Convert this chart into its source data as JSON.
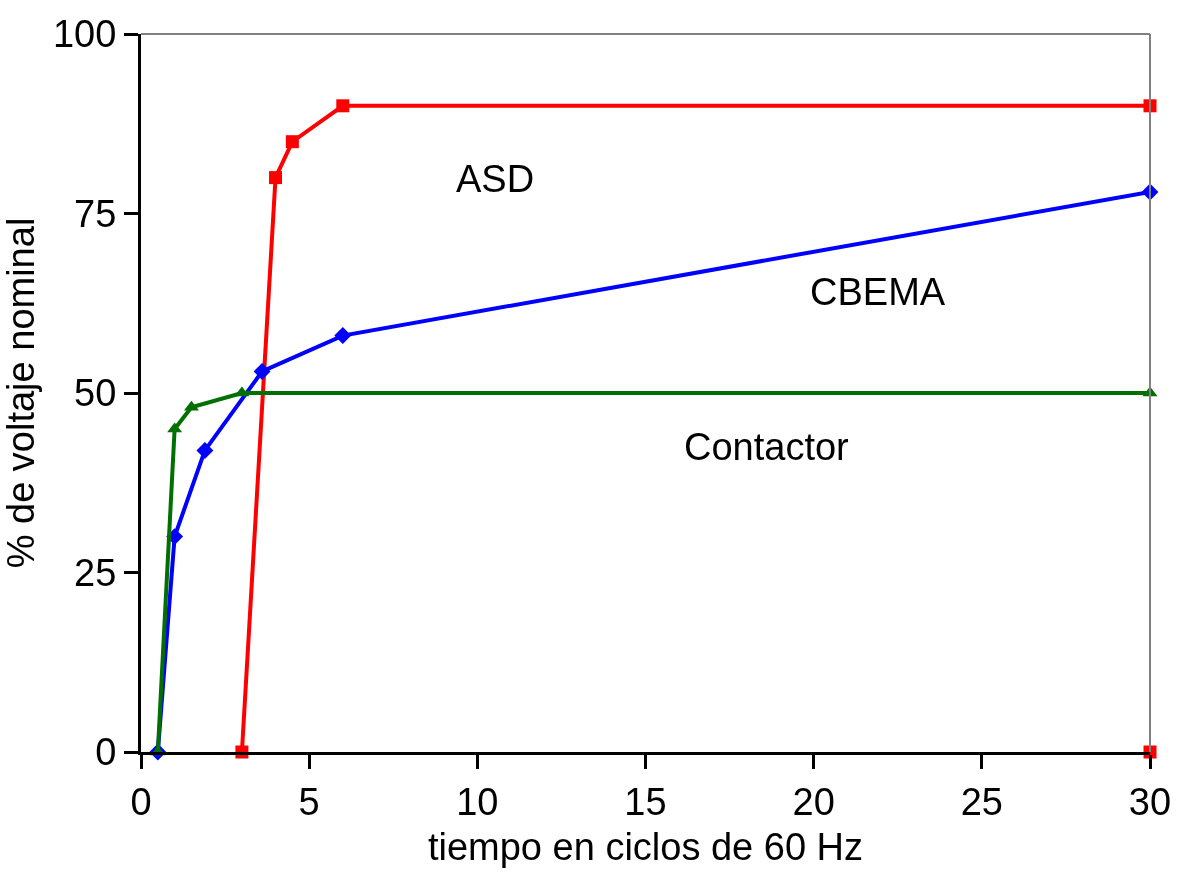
{
  "chart_data": {
    "type": "line",
    "xlabel": "tiempo en ciclos de 60 Hz",
    "ylabel": "% de voltaje nominal",
    "xlim": [
      0,
      30
    ],
    "xticks": [
      0,
      5,
      10,
      15,
      20,
      25,
      30
    ],
    "ylim": [
      0,
      100
    ],
    "yticks": [
      0,
      25,
      50,
      75,
      100
    ],
    "legend": false,
    "line_style": "solid",
    "series": [
      {
        "name": "ASD",
        "color": "#ff0000",
        "marker": "square",
        "x": [
          3,
          4,
          4.5,
          6,
          30
        ],
        "values": [
          0,
          80,
          85,
          90,
          90
        ]
      },
      {
        "name": "CBEMA",
        "color": "#0000ff",
        "marker": "diamond",
        "x": [
          0.5,
          1,
          1.9,
          3.6,
          6,
          30
        ],
        "values": [
          0,
          30,
          42,
          53,
          58,
          78
        ]
      },
      {
        "name": "Contactor",
        "color": "#007000",
        "marker": "triangle",
        "x": [
          0.5,
          1,
          1.5,
          3,
          30
        ],
        "values": [
          0,
          45,
          48,
          50,
          50
        ]
      },
      {
        "type": "scatter",
        "color": "#ff0000",
        "marker": "square",
        "x": [
          30
        ],
        "values": [
          0
        ]
      }
    ]
  }
}
